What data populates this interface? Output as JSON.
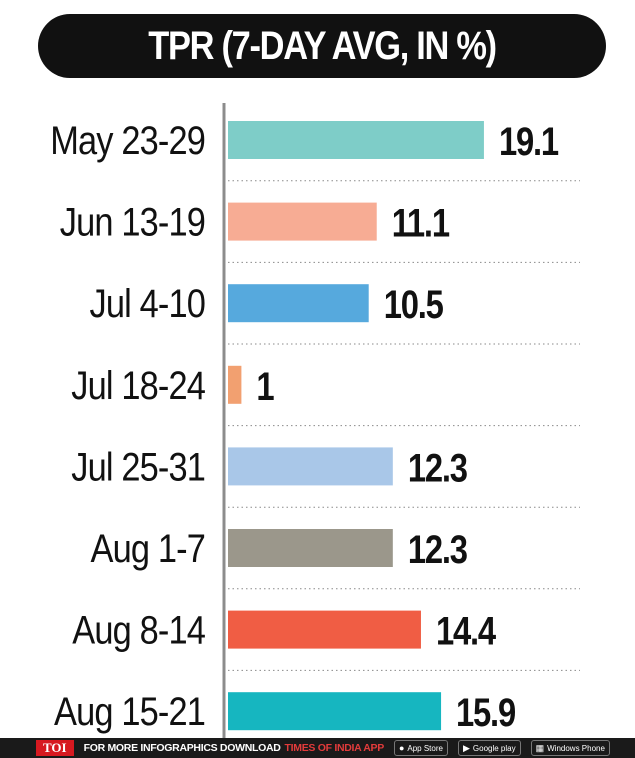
{
  "chart_data": {
    "type": "bar",
    "orientation": "horizontal",
    "title": "TPR (7-DAY AVG, IN %)",
    "categories": [
      "May 23-29",
      "Jun 13-19",
      "Jul 4-10",
      "Jul 18-24",
      "Jul 25-31",
      "Aug 1-7",
      "Aug 8-14",
      "Aug 15-21"
    ],
    "values": [
      19.1,
      11.1,
      10.5,
      1,
      12.3,
      12.3,
      14.4,
      15.9
    ],
    "value_labels": [
      "19.1",
      "11.1",
      "10.5",
      "1",
      "12.3",
      "12.3",
      "14.4",
      "15.9"
    ],
    "bar_colors": [
      "#7ecdc8",
      "#f7ac94",
      "#56a9dd",
      "#f2a070",
      "#a9c7e8",
      "#9b978b",
      "#f05d44",
      "#16b6c0"
    ],
    "grid": "dotted separators",
    "legend": "none",
    "xlim": [
      0,
      20
    ]
  },
  "footer": {
    "logo": "TOI",
    "text": "FOR MORE  INFOGRAPHICS DOWNLOAD",
    "brand": "TIMES OF INDIA  APP",
    "app_store": "App Store",
    "google_play": "Google play",
    "windows": "Windows Phone"
  }
}
